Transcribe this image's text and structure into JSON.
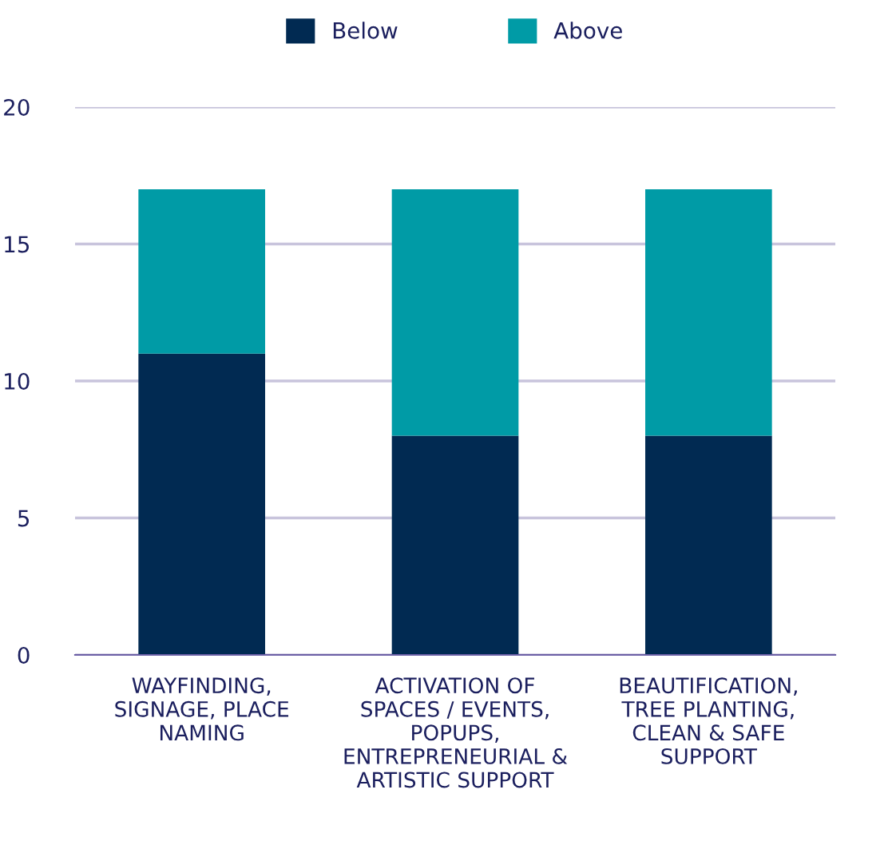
{
  "chart_data": {
    "type": "bar",
    "stacked": true,
    "categories": [
      "WAYFINDING,\nSIGNAGE, PLACE\nNAMING",
      "ACTIVATION OF\nSPACES / EVENTS,\nPOPUPS,\nENTREPRENEURIAL &\nARTISTIC SUPPORT",
      "BEAUTIFICATION,\nTREE PLANTING,\nCLEAN & SAFE\nSUPPORT"
    ],
    "series": [
      {
        "name": "Below",
        "color": "#012a52",
        "values": [
          11,
          8,
          8
        ]
      },
      {
        "name": "Above",
        "color": "#009ba6",
        "values": [
          6,
          9,
          9
        ]
      }
    ],
    "ylim": [
      0,
      20
    ],
    "yticks": [
      0,
      5,
      10,
      15,
      20
    ],
    "grid": "y",
    "legend": "top"
  }
}
